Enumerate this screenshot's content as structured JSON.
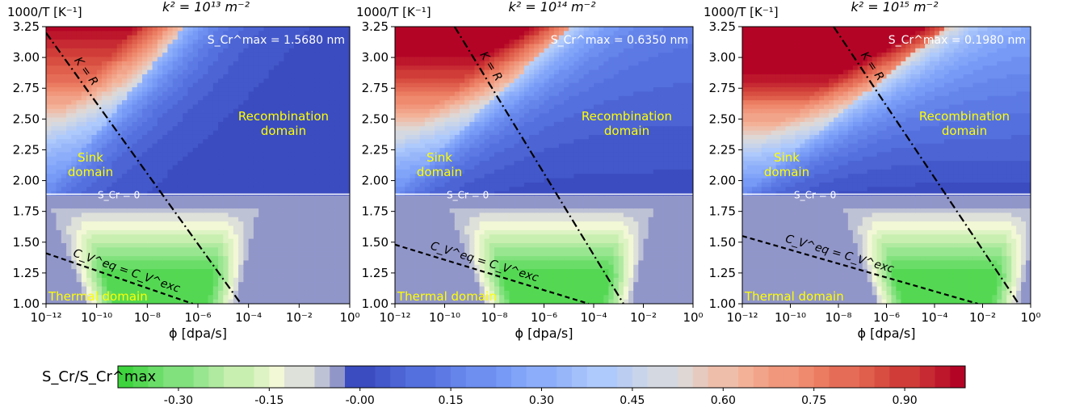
{
  "chart_data": [
    {
      "type": "heatmap",
      "title": "k² = 10¹³ m⁻²",
      "ylabel": "1000/T [K⁻¹]",
      "xlabel": "ϕ [dpa/s]",
      "xscale": "log",
      "xlim": [
        1e-12,
        1
      ],
      "ylim": [
        1.0,
        3.25
      ],
      "xticks": [
        "10⁻¹²",
        "10⁻¹⁰",
        "10⁻⁸",
        "10⁻⁶",
        "10⁻⁴",
        "10⁻²",
        "10⁰"
      ],
      "yticks": [
        "1.00",
        "1.25",
        "1.50",
        "1.75",
        "2.00",
        "2.25",
        "2.50",
        "2.75",
        "3.00",
        "3.25"
      ],
      "smax_label": "S_Cr^max = 1.5680 nm",
      "s_zero_level": 1.89,
      "s_zero_label": "S_Cr = 0",
      "k_eq_r_line": {
        "label": "K = R",
        "points": [
          [
            -12,
            3.2
          ],
          [
            -4.3,
            1.0
          ]
        ]
      },
      "cv_line": {
        "label": "C_V^eq = C_V^exc",
        "points": [
          [
            -12,
            1.41
          ],
          [
            -6.2,
            1.0
          ]
        ]
      },
      "annotations": [
        "Recombination domain",
        "Sink domain",
        "Thermal domain"
      ],
      "shift": 0
    },
    {
      "type": "heatmap",
      "title": "k² = 10¹⁴ m⁻²",
      "ylabel": "1000/T [K⁻¹]",
      "xlabel": "ϕ [dpa/s]",
      "xscale": "log",
      "xlim": [
        1e-12,
        1
      ],
      "ylim": [
        1.0,
        3.25
      ],
      "xticks": [
        "10⁻¹²",
        "10⁻¹⁰",
        "10⁻⁸",
        "10⁻⁶",
        "10⁻⁴",
        "10⁻²",
        "10⁰"
      ],
      "yticks": [
        "1.00",
        "1.25",
        "1.50",
        "1.75",
        "2.00",
        "2.25",
        "2.50",
        "2.75",
        "3.00",
        "3.25"
      ],
      "smax_label": "S_Cr^max = 0.6350 nm",
      "s_zero_level": 1.89,
      "s_zero_label": "S_Cr = 0",
      "k_eq_r_line": {
        "label": "K = R",
        "points": [
          [
            -9.6,
            3.25
          ],
          [
            -2.8,
            1.0
          ]
        ]
      },
      "cv_line": {
        "label": "C_V^eq = C_V^exc",
        "points": [
          [
            -12,
            1.48
          ],
          [
            -4.2,
            1.0
          ]
        ]
      },
      "annotations": [
        "Recombination domain",
        "Sink domain",
        "Thermal domain"
      ],
      "shift": 1
    },
    {
      "type": "heatmap",
      "title": "k² = 10¹⁵ m⁻²",
      "ylabel": "1000/T [K⁻¹]",
      "xlabel": "ϕ [dpa/s]",
      "xscale": "log",
      "xlim": [
        1e-12,
        1
      ],
      "ylim": [
        1.0,
        3.25
      ],
      "xticks": [
        "10⁻¹²",
        "10⁻¹⁰",
        "10⁻⁸",
        "10⁻⁶",
        "10⁻⁴",
        "10⁻²",
        "10⁰"
      ],
      "yticks": [
        "1.00",
        "1.25",
        "1.50",
        "1.75",
        "2.00",
        "2.25",
        "2.50",
        "2.75",
        "3.00",
        "3.25"
      ],
      "smax_label": "S_Cr^max = 0.1980 nm",
      "s_zero_level": 1.89,
      "s_zero_label": "S_Cr = 0",
      "k_eq_r_line": {
        "label": "K = R",
        "points": [
          [
            -8.2,
            3.25
          ],
          [
            -0.5,
            1.0
          ]
        ]
      },
      "cv_line": {
        "label": "C_V^eq = C_V^exc",
        "points": [
          [
            -12,
            1.55
          ],
          [
            -2.2,
            1.0
          ]
        ]
      },
      "annotations": [
        "Recombination domain",
        "Sink domain",
        "Thermal domain"
      ],
      "shift": 2
    }
  ],
  "colorbar": {
    "label": "S_Cr/S_Cr^max",
    "range": [
      -0.4,
      1.0
    ],
    "ticks": [
      "-0.30",
      "-0.15",
      "-0.00",
      "0.15",
      "0.30",
      "0.45",
      "0.60",
      "0.75",
      "0.90"
    ],
    "tick_values": [
      -0.3,
      -0.15,
      0.0,
      0.15,
      0.3,
      0.45,
      0.6,
      0.75,
      0.9
    ],
    "levels": 50,
    "colormap": "custom green-white-blue-red"
  },
  "colors": {
    "sink_blue": "#3b4cc0",
    "thermal_blue": "#7282d6",
    "green": "#3ed43e",
    "cream": "#f6f7d8",
    "red": "#b40426",
    "annotation": "#ffff00"
  }
}
